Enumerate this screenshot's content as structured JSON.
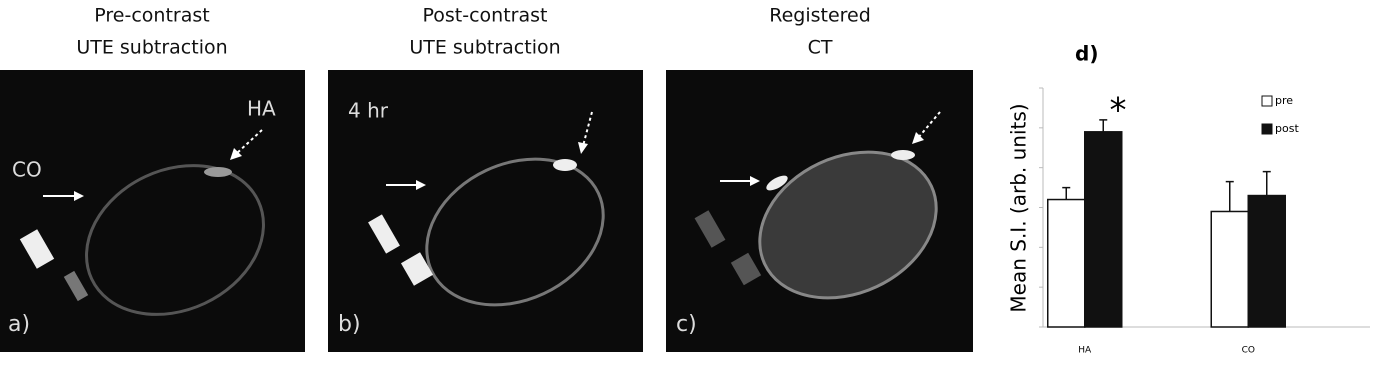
{
  "panels": [
    {
      "title_lines": [
        "Pre-contrast",
        "UTE subtraction"
      ],
      "label": "a)",
      "notes": [
        "CO",
        "HA"
      ]
    },
    {
      "title_lines": [
        "Post-contrast",
        "UTE subtraction"
      ],
      "label": "b)",
      "notes": [
        "4 hr"
      ]
    },
    {
      "title_lines": [
        "Registered",
        "CT"
      ],
      "label": "c)",
      "notes": []
    }
  ],
  "chart_data": {
    "type": "bar",
    "panel_label": "d)",
    "ylabel": "Mean S.I. (arb. units)",
    "annotation": "*",
    "categories": [
      "HA",
      "CO"
    ],
    "series": [
      {
        "name": "pre",
        "color": "#ffffff",
        "values": [
          3.2,
          2.9
        ],
        "errors": [
          0.3,
          0.75
        ]
      },
      {
        "name": "post",
        "color": "#111111",
        "values": [
          4.9,
          3.3
        ],
        "errors": [
          0.3,
          0.6
        ]
      }
    ],
    "ylim": [
      0,
      6
    ],
    "yticks": [
      0,
      1,
      2,
      3,
      4,
      5,
      6
    ],
    "legend": "upper right"
  }
}
